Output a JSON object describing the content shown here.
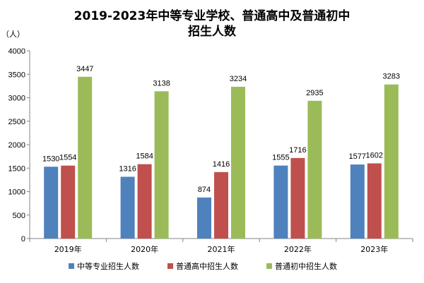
{
  "chart_data": {
    "type": "bar",
    "title_line1": "2019-2023年中等专业学校、普通高中及普通初中",
    "title_line2": "招生人数",
    "unit_label": "（人）",
    "categories": [
      "2019年",
      "2020年",
      "2021年",
      "2022年",
      "2023年"
    ],
    "series": [
      {
        "name": "中等专业招生人数",
        "color": "#4f81bd",
        "values": [
          1530,
          1316,
          874,
          1555,
          1577
        ]
      },
      {
        "name": "普通高中招生人数",
        "color": "#c0504d",
        "values": [
          1554,
          1584,
          1416,
          1716,
          1602
        ]
      },
      {
        "name": "普通初中招生人数",
        "color": "#9bbb59",
        "values": [
          3447,
          3138,
          3234,
          2935,
          3283
        ]
      }
    ],
    "ylim": [
      0,
      4000
    ],
    "yticks": [
      0,
      500,
      1000,
      1500,
      2000,
      2500,
      3000,
      3500,
      4000
    ],
    "grid": false,
    "legend_position": "bottom"
  }
}
